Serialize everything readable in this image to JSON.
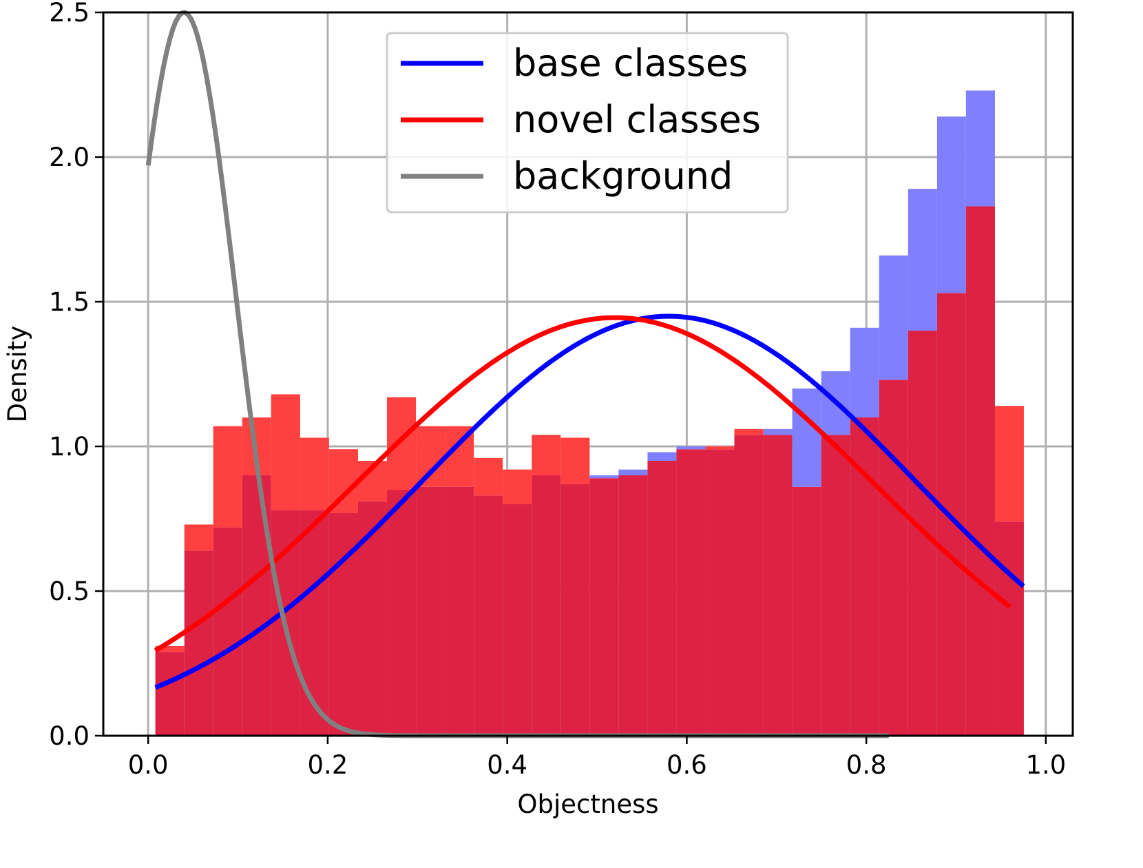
{
  "chart_data": {
    "type": "bar",
    "xlabel": "Objectness",
    "ylabel": "Density",
    "xlim": [
      -0.05,
      1.03
    ],
    "ylim": [
      0,
      2.5
    ],
    "x_ticks": [
      0.0,
      0.2,
      0.4,
      0.6,
      0.8,
      1.0
    ],
    "x_tick_labels": [
      "0.0",
      "0.2",
      "0.4",
      "0.6",
      "0.8",
      "1.0"
    ],
    "y_ticks": [
      0.0,
      0.5,
      1.0,
      1.5,
      2.0,
      2.5
    ],
    "y_tick_labels": [
      "0.0",
      "0.5",
      "1.0",
      "1.5",
      "2.0",
      "2.5"
    ],
    "grid": true,
    "legend_position": "top-center",
    "histogram": {
      "bin_edges": [
        0.008,
        0.0403,
        0.0725,
        0.1048,
        0.137,
        0.1693,
        0.2015,
        0.2338,
        0.266,
        0.2983,
        0.3305,
        0.3628,
        0.395,
        0.4273,
        0.4595,
        0.4918,
        0.524,
        0.5563,
        0.5885,
        0.6208,
        0.653,
        0.6853,
        0.7175,
        0.7498,
        0.782,
        0.8143,
        0.8465,
        0.8788,
        0.911,
        0.9433,
        0.9755
      ],
      "series": [
        {
          "key": "base",
          "color": "#8080ff",
          "values": [
            0.29,
            0.64,
            0.72,
            0.9,
            0.78,
            0.78,
            0.77,
            0.81,
            0.85,
            0.86,
            0.86,
            0.83,
            0.8,
            0.9,
            0.87,
            0.9,
            0.92,
            0.98,
            1.0,
            0.99,
            1.04,
            1.06,
            1.2,
            1.26,
            1.41,
            1.66,
            1.89,
            2.14,
            2.23,
            0.74
          ]
        },
        {
          "key": "novel",
          "color": "#ff4040",
          "values": [
            0.31,
            0.73,
            1.07,
            1.1,
            1.18,
            1.03,
            0.99,
            0.95,
            1.17,
            1.07,
            1.07,
            0.96,
            0.92,
            1.04,
            1.03,
            0.89,
            0.9,
            0.95,
            0.99,
            1.0,
            1.06,
            1.04,
            0.86,
            1.04,
            1.1,
            1.23,
            1.4,
            1.53,
            1.83,
            1.14
          ]
        }
      ],
      "overlap_color": "#dd2244"
    },
    "series": [
      {
        "name": "base classes",
        "color": "#0000ff",
        "curve": {
          "kind": "normal",
          "mean": 0.58,
          "std": 0.275,
          "peak": 1.45
        },
        "x_range": [
          0.008,
          0.975
        ]
      },
      {
        "name": "novel classes",
        "color": "#ff0000",
        "curve": {
          "kind": "normal",
          "mean": 0.52,
          "std": 0.287,
          "peak": 1.445
        },
        "x_range": [
          0.008,
          0.96
        ]
      },
      {
        "name": "background",
        "color": "#808080",
        "curve": {
          "kind": "normal",
          "mean": 0.04,
          "std": 0.058,
          "peak": 2.5
        },
        "x_range": [
          0.0,
          0.825
        ]
      }
    ]
  }
}
